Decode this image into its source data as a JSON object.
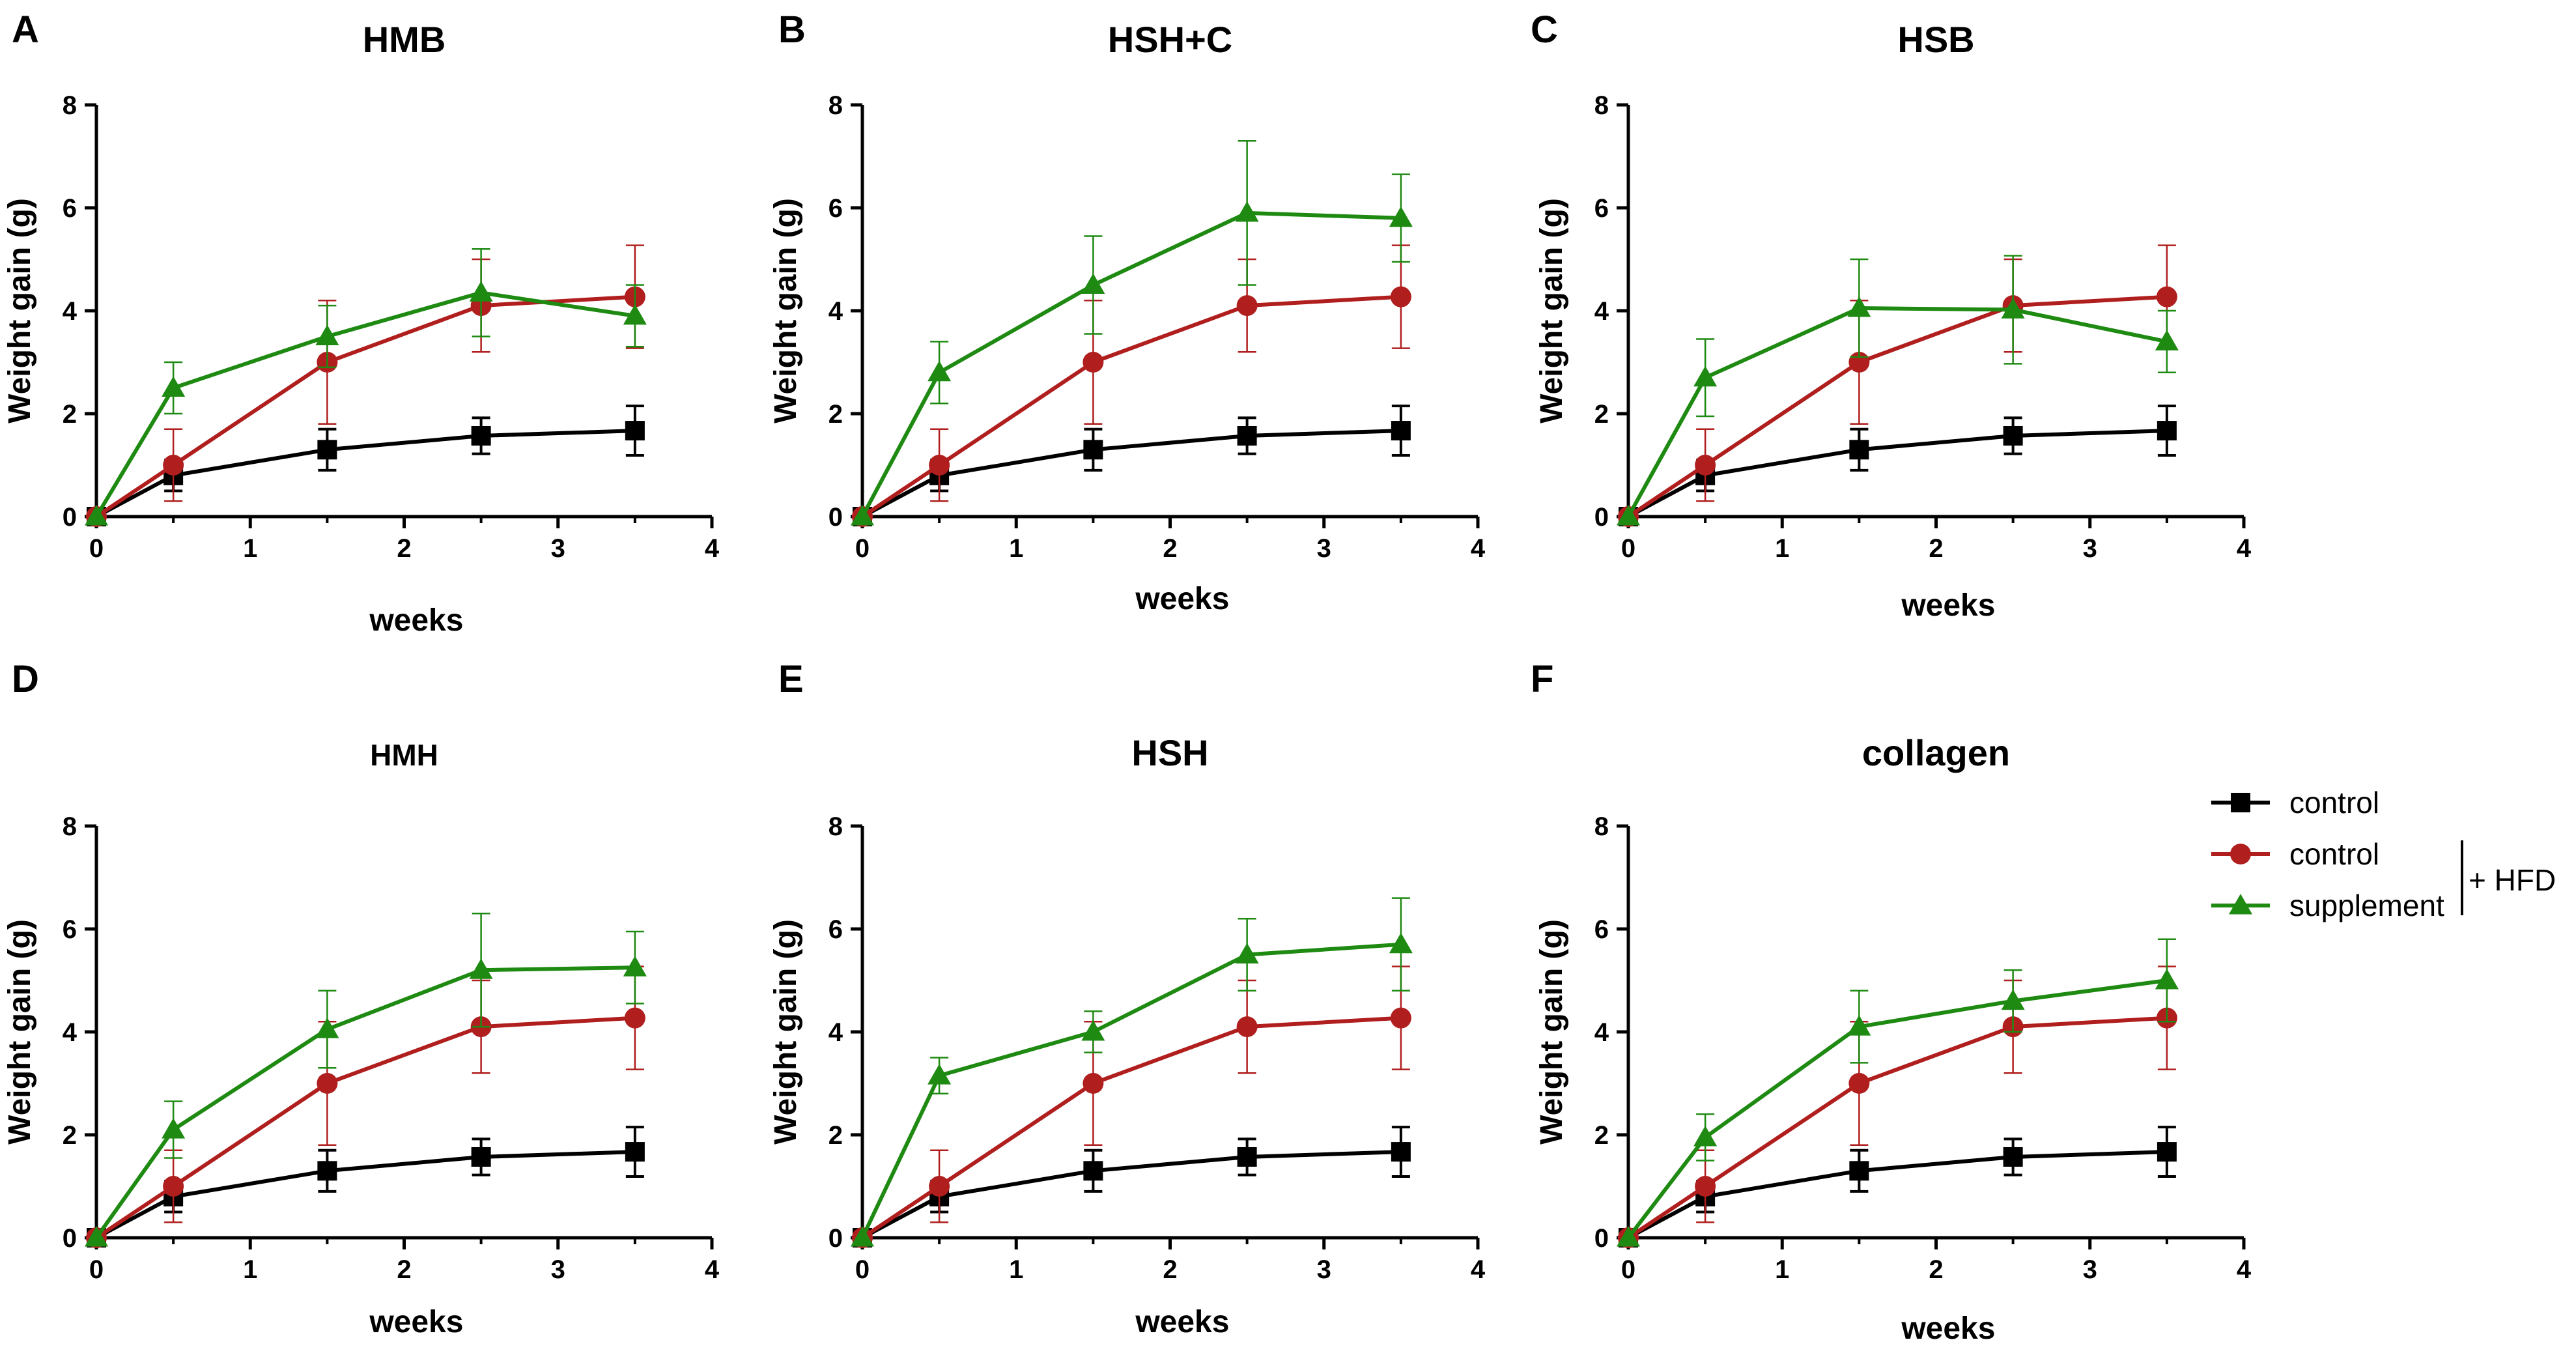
{
  "legend": {
    "entries": [
      {
        "label": "control",
        "marker": "square",
        "color": "#000000"
      },
      {
        "label": "control",
        "marker": "circle",
        "color": "#b01e1e"
      },
      {
        "label": "supplement",
        "marker": "triangle",
        "color": "#1e8a12"
      }
    ],
    "bracket_label": "+ HFD",
    "position": "right-middle"
  },
  "chart_data": [
    {
      "panel": "A",
      "type": "line",
      "title": "HMB",
      "title_style": "large",
      "xlabel": "weeks",
      "ylabel": "Weight gain (g)",
      "xlim": [
        0,
        4
      ],
      "ylim": [
        0,
        8
      ],
      "xticks": [
        "0",
        "1",
        "2",
        "3",
        "4"
      ],
      "yticks": [
        "0",
        "2",
        "4",
        "6",
        "8"
      ],
      "x": [
        0,
        0.5,
        1.5,
        2.5,
        3.5
      ],
      "series": [
        {
          "name": "control",
          "color": "#000000",
          "marker": "square",
          "values": [
            0,
            0.8,
            1.3,
            1.57,
            1.67
          ],
          "errors": [
            0,
            0.3,
            0.4,
            0.35,
            0.48
          ]
        },
        {
          "name": "control + HFD",
          "color": "#b01e1e",
          "marker": "circle",
          "values": [
            0,
            1.0,
            3.0,
            4.1,
            4.27
          ],
          "errors": [
            0,
            0.7,
            1.2,
            0.9,
            1.0
          ]
        },
        {
          "name": "supplement + HFD",
          "color": "#1e8a12",
          "marker": "triangle",
          "values": [
            0,
            2.5,
            3.5,
            4.35,
            3.9
          ],
          "errors": [
            0,
            0.5,
            0.6,
            0.85,
            0.6
          ]
        }
      ]
    },
    {
      "panel": "B",
      "type": "line",
      "title": "HSH+C",
      "title_style": "large",
      "xlabel": "weeks",
      "ylabel": "Weight gain (g)",
      "xlim": [
        0,
        4
      ],
      "ylim": [
        0,
        8
      ],
      "xticks": [
        "0",
        "1",
        "2",
        "3",
        "4"
      ],
      "yticks": [
        "0",
        "2",
        "4",
        "6",
        "8"
      ],
      "x": [
        0,
        0.5,
        1.5,
        2.5,
        3.5
      ],
      "series": [
        {
          "name": "control",
          "color": "#000000",
          "marker": "square",
          "values": [
            0,
            0.8,
            1.3,
            1.57,
            1.67
          ],
          "errors": [
            0,
            0.3,
            0.4,
            0.35,
            0.48
          ]
        },
        {
          "name": "control + HFD",
          "color": "#b01e1e",
          "marker": "circle",
          "values": [
            0,
            1.0,
            3.0,
            4.1,
            4.27
          ],
          "errors": [
            0,
            0.7,
            1.2,
            0.9,
            1.0
          ]
        },
        {
          "name": "supplement + HFD",
          "color": "#1e8a12",
          "marker": "triangle",
          "values": [
            0,
            2.8,
            4.5,
            5.9,
            5.8
          ],
          "errors": [
            0,
            0.6,
            0.95,
            1.4,
            0.85
          ]
        }
      ]
    },
    {
      "panel": "C",
      "type": "line",
      "title": "HSB",
      "title_style": "large",
      "xlabel": "weeks",
      "ylabel": "Weight gain (g)",
      "xlim": [
        0,
        4
      ],
      "ylim": [
        0,
        8
      ],
      "xticks": [
        "0",
        "1",
        "2",
        "3",
        "4"
      ],
      "yticks": [
        "0",
        "2",
        "4",
        "6",
        "8"
      ],
      "x": [
        0,
        0.5,
        1.5,
        2.5,
        3.5
      ],
      "series": [
        {
          "name": "control",
          "color": "#000000",
          "marker": "square",
          "values": [
            0,
            0.8,
            1.3,
            1.57,
            1.67
          ],
          "errors": [
            0,
            0.3,
            0.4,
            0.35,
            0.48
          ]
        },
        {
          "name": "control + HFD",
          "color": "#b01e1e",
          "marker": "circle",
          "values": [
            0,
            1.0,
            3.0,
            4.1,
            4.27
          ],
          "errors": [
            0,
            0.7,
            1.2,
            0.9,
            1.0
          ]
        },
        {
          "name": "supplement + HFD",
          "color": "#1e8a12",
          "marker": "triangle",
          "values": [
            0,
            2.7,
            4.05,
            4.02,
            3.4
          ],
          "errors": [
            0,
            0.75,
            0.95,
            1.05,
            0.6
          ]
        }
      ]
    },
    {
      "panel": "D",
      "type": "line",
      "title": "HMH",
      "title_style": "small",
      "xlabel": "weeks",
      "ylabel": "Weight gain (g)",
      "xlim": [
        0,
        4
      ],
      "ylim": [
        0,
        8
      ],
      "xticks": [
        "0",
        "1",
        "2",
        "3",
        "4"
      ],
      "yticks": [
        "0",
        "2",
        "4",
        "6",
        "8"
      ],
      "x": [
        0,
        0.5,
        1.5,
        2.5,
        3.5
      ],
      "series": [
        {
          "name": "control",
          "color": "#000000",
          "marker": "square",
          "values": [
            0,
            0.8,
            1.3,
            1.57,
            1.67
          ],
          "errors": [
            0,
            0.3,
            0.4,
            0.35,
            0.48
          ]
        },
        {
          "name": "control + HFD",
          "color": "#b01e1e",
          "marker": "circle",
          "values": [
            0,
            1.0,
            3.0,
            4.1,
            4.27
          ],
          "errors": [
            0,
            0.7,
            1.2,
            0.9,
            1.0
          ]
        },
        {
          "name": "supplement + HFD",
          "color": "#1e8a12",
          "marker": "triangle",
          "values": [
            0,
            2.1,
            4.05,
            5.2,
            5.25
          ],
          "errors": [
            0,
            0.55,
            0.75,
            1.1,
            0.7
          ]
        }
      ]
    },
    {
      "panel": "E",
      "type": "line",
      "title": "HSH",
      "title_style": "large",
      "xlabel": "weeks",
      "ylabel": "Weight gain (g)",
      "xlim": [
        0,
        4
      ],
      "ylim": [
        0,
        8
      ],
      "xticks": [
        "0",
        "1",
        "2",
        "3",
        "4"
      ],
      "yticks": [
        "0",
        "2",
        "4",
        "6",
        "8"
      ],
      "x": [
        0,
        0.5,
        1.5,
        2.5,
        3.5
      ],
      "series": [
        {
          "name": "control",
          "color": "#000000",
          "marker": "square",
          "values": [
            0,
            0.8,
            1.3,
            1.57,
            1.67
          ],
          "errors": [
            0,
            0.3,
            0.4,
            0.35,
            0.48
          ]
        },
        {
          "name": "control + HFD",
          "color": "#b01e1e",
          "marker": "circle",
          "values": [
            0,
            1.0,
            3.0,
            4.1,
            4.27
          ],
          "errors": [
            0,
            0.7,
            1.2,
            0.9,
            1.0
          ]
        },
        {
          "name": "supplement + HFD",
          "color": "#1e8a12",
          "marker": "triangle",
          "values": [
            0,
            3.15,
            4.0,
            5.5,
            5.7
          ],
          "errors": [
            0,
            0.35,
            0.4,
            0.7,
            0.9
          ]
        }
      ]
    },
    {
      "panel": "F",
      "type": "line",
      "title": "collagen",
      "title_style": "large",
      "xlabel": "weeks",
      "ylabel": "Weight gain (g)",
      "xlim": [
        0,
        4
      ],
      "ylim": [
        0,
        8
      ],
      "xticks": [
        "0",
        "1",
        "2",
        "3",
        "4"
      ],
      "yticks": [
        "0",
        "2",
        "4",
        "6",
        "8"
      ],
      "x": [
        0,
        0.5,
        1.5,
        2.5,
        3.5
      ],
      "series": [
        {
          "name": "control",
          "color": "#000000",
          "marker": "square",
          "values": [
            0,
            0.8,
            1.3,
            1.57,
            1.67
          ],
          "errors": [
            0,
            0.3,
            0.4,
            0.35,
            0.48
          ]
        },
        {
          "name": "control + HFD",
          "color": "#b01e1e",
          "marker": "circle",
          "values": [
            0,
            1.0,
            3.0,
            4.1,
            4.27
          ],
          "errors": [
            0,
            0.7,
            1.2,
            0.9,
            1.0
          ]
        },
        {
          "name": "supplement + HFD",
          "color": "#1e8a12",
          "marker": "triangle",
          "values": [
            0,
            1.95,
            4.1,
            4.6,
            5.0
          ],
          "errors": [
            0,
            0.45,
            0.7,
            0.6,
            0.8
          ]
        }
      ]
    }
  ]
}
